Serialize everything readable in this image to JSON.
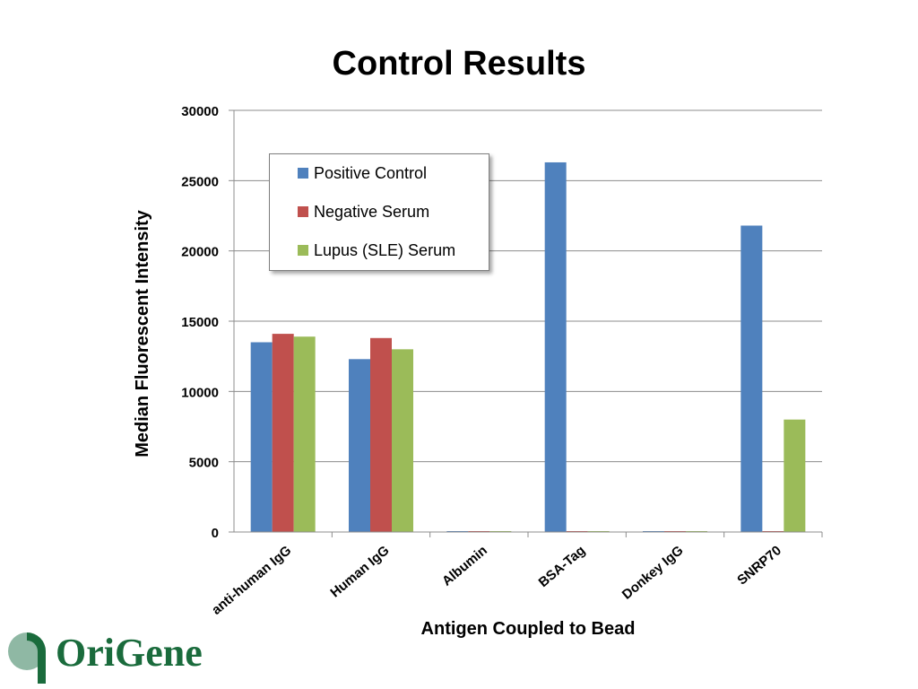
{
  "slide": {
    "title": "Control Results"
  },
  "logo": {
    "text": "OriGene"
  },
  "chart_data": {
    "type": "bar",
    "title": "",
    "xlabel": "Antigen Coupled to Bead",
    "ylabel": "Median Fluorescent Intensity",
    "ylim": [
      0,
      30000
    ],
    "yticks": [
      0,
      5000,
      10000,
      15000,
      20000,
      25000,
      30000
    ],
    "grid": true,
    "legend_position": "upper-left",
    "categories": [
      "anti-human IgG",
      "Human IgG",
      "Albumin",
      "BSA-Tag",
      "Donkey IgG",
      "SNRP70"
    ],
    "series": [
      {
        "name": "Positive Control",
        "color": "#4f81bd",
        "values": [
          13500,
          12300,
          0,
          26300,
          50,
          21800
        ]
      },
      {
        "name": "Negative Serum",
        "color": "#c0504d",
        "values": [
          14100,
          13800,
          50,
          50,
          50,
          50
        ]
      },
      {
        "name": "Lupus (SLE) Serum",
        "color": "#9bbb59",
        "values": [
          13900,
          13000,
          0,
          50,
          50,
          8000
        ]
      }
    ]
  }
}
